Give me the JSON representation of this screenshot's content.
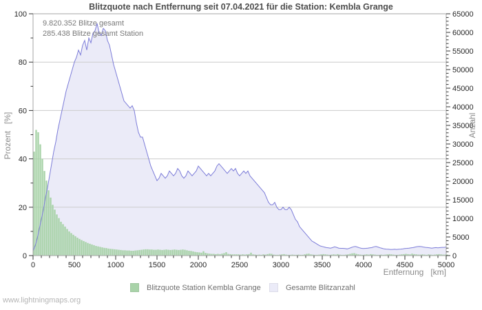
{
  "title": "Blitzquote nach Entfernung seit 07.04.2021 für die Station: Kembla Grange",
  "annotation": {
    "line1": "9.820.352 Blitze gesamt",
    "line2": "285.438 Blitze gesamt Station"
  },
  "watermark": "www.lightningmaps.org",
  "axes": {
    "x": {
      "title": "Entfernung   [km]",
      "min": 0,
      "max": 5000,
      "major_ticks": [
        0,
        500,
        1000,
        1500,
        2000,
        2500,
        3000,
        3500,
        4000,
        4500,
        5000
      ],
      "minor_step": 100
    },
    "y_left": {
      "title": "Prozent   [%]",
      "min": 0,
      "max": 100,
      "major_ticks": [
        0,
        20,
        40,
        60,
        80,
        100
      ],
      "minor_step": 10
    },
    "y_right": {
      "title": "Anzahl",
      "min": 0,
      "max": 65000,
      "major_ticks": [
        0,
        5000,
        10000,
        15000,
        20000,
        25000,
        30000,
        35000,
        40000,
        45000,
        50000,
        55000,
        60000,
        65000
      ],
      "minor_step": 1000
    }
  },
  "legend": {
    "items": [
      {
        "label": "Blitzquote Station Kembla Grange",
        "color": "#a9d3a9"
      },
      {
        "label": "Gesamte Blitzanzahl",
        "color": "#ebebf8"
      }
    ]
  },
  "colors": {
    "bar_fill": "#a9d3a9",
    "area_fill": "#ebebf8",
    "line": "#7b7bd8",
    "grid": "#cccccc",
    "frame": "#a6a6a6",
    "tick": "#333333"
  },
  "chart_data": {
    "type": "mixed",
    "x_title": "Entfernung [km]",
    "x_start": 0,
    "x_step": 25,
    "x_end": 5000,
    "grid": "horizontal-only",
    "legend_position": "bottom",
    "series": [
      {
        "name": "Blitzquote Station Kembla Grange",
        "type": "bar",
        "axis": "left",
        "unit": "%",
        "values": [
          43,
          52,
          51,
          46,
          40,
          35,
          31,
          27,
          24,
          21,
          19,
          17,
          15.5,
          14,
          13,
          12,
          11,
          10,
          9.3,
          8.6,
          8,
          7.4,
          6.9,
          6.4,
          6,
          5.6,
          5.2,
          4.9,
          4.6,
          4.3,
          4,
          3.8,
          3.6,
          3.4,
          3.2,
          3.1,
          2.9,
          2.8,
          2.7,
          2.6,
          2.5,
          2.4,
          2.3,
          2.2,
          2.2,
          2.1,
          2.1,
          2,
          2,
          2.1,
          2.2,
          2.3,
          2.4,
          2.5,
          2.6,
          2.6,
          2.5,
          2.5,
          2.4,
          2.4,
          2.5,
          2.4,
          2.3,
          2.4,
          2.5,
          2.4,
          2.3,
          2.4,
          2.5,
          2.4,
          2.3,
          2.4,
          2.5,
          2.4,
          2.2,
          2,
          1.9,
          1.7,
          1.5,
          1.4,
          1.3,
          1.2,
          1.8,
          1.1,
          0.9,
          0.8,
          0.7,
          0.7,
          0.6,
          0.7,
          0.6,
          0.8,
          1,
          1.4,
          0.7,
          0.6,
          0.5,
          0.5,
          0.5,
          0.5,
          0.4,
          0.5,
          0.4,
          0.5,
          0.6,
          1.2,
          0.5,
          0.4,
          0.3,
          0.4,
          0.3,
          0.5,
          0.4,
          0.6,
          0.8,
          0.7,
          0.4,
          0.3,
          0.3,
          0.4,
          0.5,
          0.6,
          0.4,
          0.3,
          0.3,
          0.4,
          0.3,
          0.3,
          0.4,
          0.3,
          0.3,
          0.5,
          0.7,
          0.8,
          0.5,
          0.4,
          0.3,
          0.3,
          0.4,
          0.5,
          0.6,
          0.5,
          0.4,
          0.3,
          0.4,
          0.5,
          0.4,
          0.6,
          0.4,
          0.3,
          0.3,
          0.4,
          0.5,
          0.7,
          0.9,
          1,
          0.7,
          0.5,
          0.4,
          0.3,
          0.4,
          0.5,
          0.4,
          0.6,
          0.5,
          0.4,
          0.3,
          0.3,
          0.4,
          0.3,
          0.4,
          0.5,
          0.6,
          0.5,
          0.4,
          0.3,
          0.3,
          0.4,
          0.5,
          0.6,
          0.7,
          0.6,
          0.5,
          0.8,
          0.6,
          0.5,
          0.4,
          0.4,
          0.5,
          0.4,
          0.3,
          0.5,
          0.4,
          0.3,
          0.4,
          0.5,
          0.6,
          0.5,
          0.4,
          0.4,
          0.4
        ]
      },
      {
        "name": "Gesamte Blitzanzahl",
        "type": "area-line",
        "axis": "right",
        "unit": "Blitze",
        "values": [
          1300,
          2600,
          4550,
          7150,
          9750,
          12350,
          15600,
          18200,
          21450,
          24700,
          27950,
          30550,
          33800,
          36400,
          39000,
          41600,
          44200,
          46150,
          48100,
          50050,
          52000,
          53300,
          55250,
          53950,
          56550,
          57850,
          55250,
          58500,
          57200,
          59800,
          60450,
          62400,
          59800,
          59150,
          61100,
          60450,
          57850,
          56550,
          53950,
          51350,
          49400,
          47450,
          45500,
          43550,
          41600,
          40950,
          40300,
          39650,
          40300,
          39000,
          35750,
          33150,
          31850,
          31850,
          29900,
          27950,
          26000,
          24050,
          22750,
          21450,
          20150,
          20800,
          22100,
          21450,
          20800,
          21450,
          22750,
          22100,
          21450,
          22100,
          23400,
          22750,
          21450,
          20800,
          21450,
          22750,
          22100,
          21450,
          22100,
          22750,
          24050,
          23400,
          22750,
          22100,
          21450,
          22100,
          21450,
          22100,
          22750,
          24050,
          24700,
          24050,
          23400,
          22750,
          22100,
          22750,
          23400,
          22750,
          23400,
          22100,
          21450,
          22100,
          22750,
          22100,
          22750,
          21450,
          20800,
          20150,
          19500,
          18850,
          18200,
          17550,
          16900,
          15600,
          14300,
          13650,
          13650,
          14300,
          13000,
          12350,
          12350,
          13000,
          12350,
          12350,
          13000,
          12350,
          11050,
          9750,
          9100,
          7800,
          7150,
          6500,
          5850,
          5200,
          4550,
          3900,
          3600,
          3250,
          2900,
          2600,
          2450,
          2300,
          2150,
          2100,
          2000,
          2150,
          2350,
          2200,
          2000,
          1950,
          1950,
          1900,
          1800,
          1950,
          2150,
          2350,
          2450,
          2300,
          2100,
          1950,
          1900,
          1950,
          2000,
          2100,
          2150,
          2350,
          2450,
          2300,
          2100,
          1950,
          1800,
          1750,
          1700,
          1650,
          1650,
          1700,
          1650,
          1700,
          1750,
          1800,
          1900,
          1950,
          2000,
          2100,
          2150,
          2300,
          2400,
          2450,
          2400,
          2300,
          2200,
          2150,
          2100,
          2000,
          2100,
          2150,
          2100,
          2150,
          2200,
          2200,
          2300
        ]
      }
    ]
  }
}
